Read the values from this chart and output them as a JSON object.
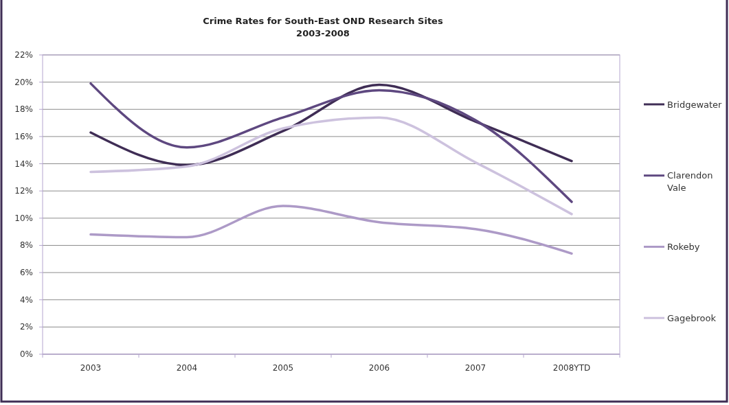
{
  "chart_data": {
    "type": "line",
    "title": "Crime Rates for South-East OND Research Sites",
    "subtitle": "2003-2008",
    "categories": [
      "2003",
      "2004",
      "2005",
      "2006",
      "2007",
      "2008YTD"
    ],
    "series": [
      {
        "name": "Bridgewater",
        "color": "#3f2d55",
        "values": [
          16.3,
          13.9,
          16.4,
          19.8,
          17.1,
          14.2
        ]
      },
      {
        "name": "Clarendon Vale",
        "color": "#5e4880",
        "values": [
          19.9,
          15.2,
          17.4,
          19.4,
          17.2,
          11.2
        ]
      },
      {
        "name": "Rokeby",
        "color": "#ad9ac7",
        "values": [
          8.8,
          8.6,
          10.9,
          9.7,
          9.2,
          7.4
        ]
      },
      {
        "name": "Gagebrook",
        "color": "#cdc2de",
        "values": [
          13.4,
          13.8,
          16.6,
          17.4,
          14.1,
          10.3
        ]
      }
    ],
    "ylim": [
      0,
      22
    ],
    "yticks": [
      {
        "value": 0,
        "label": "0%"
      },
      {
        "value": 2,
        "label": "2%"
      },
      {
        "value": 4,
        "label": "4%"
      },
      {
        "value": 6,
        "label": "6%"
      },
      {
        "value": 8,
        "label": "8%"
      },
      {
        "value": 10,
        "label": "10%"
      },
      {
        "value": 12,
        "label": "12%"
      },
      {
        "value": 14,
        "label": "14%"
      },
      {
        "value": 16,
        "label": "16%"
      },
      {
        "value": 18,
        "label": "18%"
      },
      {
        "value": 20,
        "label": "20%"
      },
      {
        "value": 22,
        "label": "22%"
      }
    ],
    "grid": "y",
    "legend": "right",
    "marker": "none",
    "line_style": "solid"
  }
}
